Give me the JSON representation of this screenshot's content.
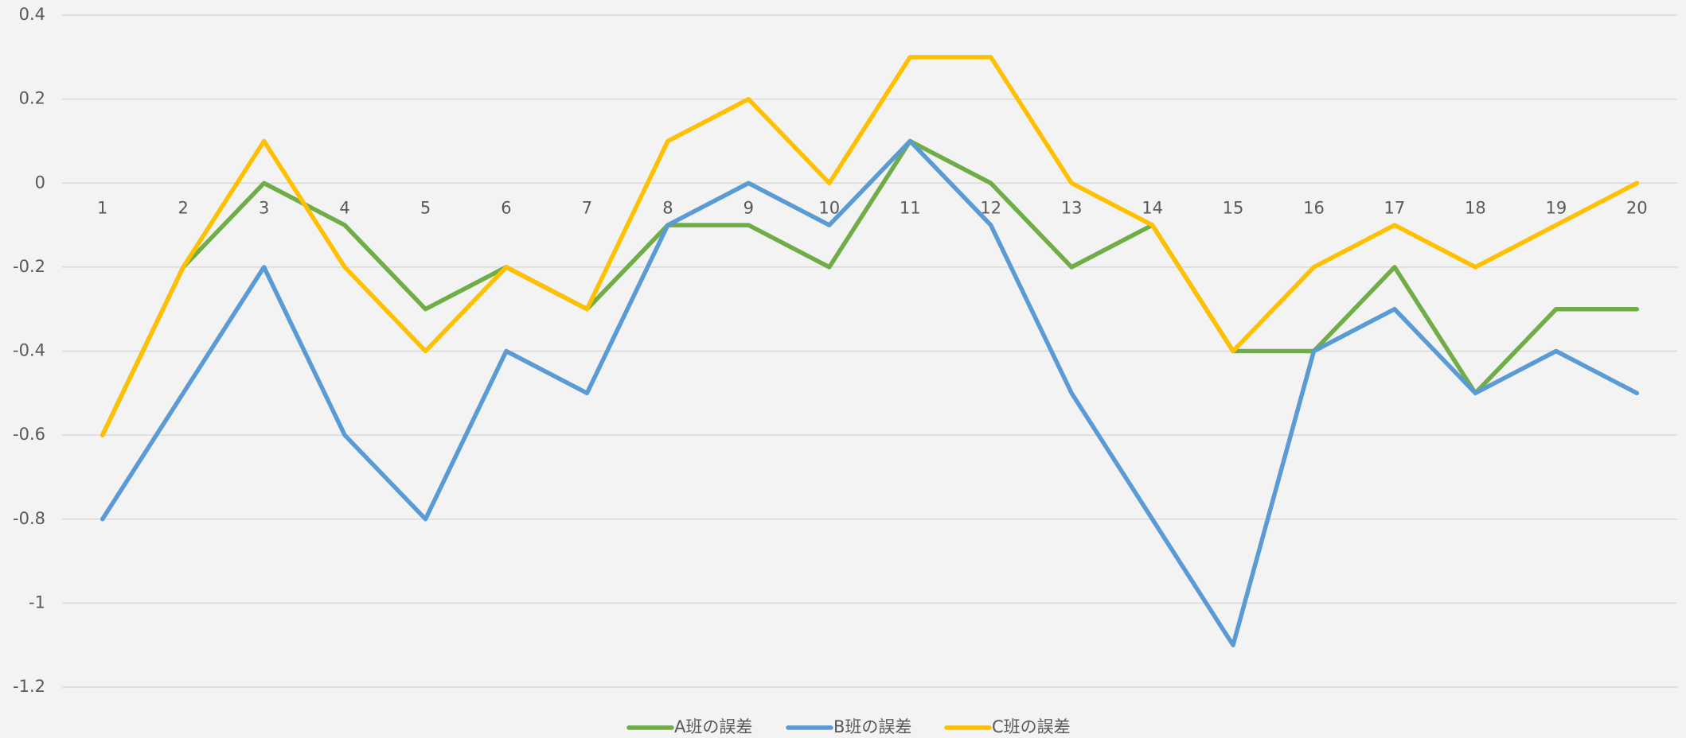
{
  "chart_data": {
    "type": "line",
    "categories": [
      "1",
      "2",
      "3",
      "4",
      "5",
      "6",
      "7",
      "8",
      "9",
      "10",
      "11",
      "12",
      "13",
      "14",
      "15",
      "16",
      "17",
      "18",
      "19",
      "20"
    ],
    "series": [
      {
        "name": "A班の誤差",
        "color": "#70ad47",
        "values": [
          -0.6,
          -0.2,
          0,
          -0.1,
          -0.3,
          -0.2,
          -0.3,
          -0.1,
          -0.1,
          -0.2,
          0.1,
          0,
          -0.2,
          -0.1,
          -0.4,
          -0.4,
          -0.2,
          -0.5,
          -0.3,
          -0.3
        ]
      },
      {
        "name": "B班の誤差",
        "color": "#5b9bd5",
        "values": [
          -0.8,
          -0.5,
          -0.2,
          -0.6,
          -0.8,
          -0.4,
          -0.5,
          -0.1,
          0,
          -0.1,
          0.1,
          -0.1,
          -0.5,
          -0.8,
          -1.1,
          -0.4,
          -0.3,
          -0.5,
          -0.4,
          -0.5
        ]
      },
      {
        "name": "C班の誤差",
        "color": "#ffc000",
        "values": [
          -0.6,
          -0.2,
          0.1,
          -0.2,
          -0.4,
          -0.2,
          -0.3,
          0.1,
          0.2,
          0,
          0.3,
          0.3,
          0,
          -0.1,
          -0.4,
          -0.2,
          -0.1,
          -0.2,
          -0.1,
          0
        ]
      }
    ],
    "ylim": [
      -1.2,
      0.4
    ],
    "yticks": [
      -1.2,
      -1,
      -0.8,
      -0.6,
      -0.4,
      -0.2,
      0,
      0.2,
      0.4
    ],
    "grid": true,
    "legend": "bottom"
  }
}
